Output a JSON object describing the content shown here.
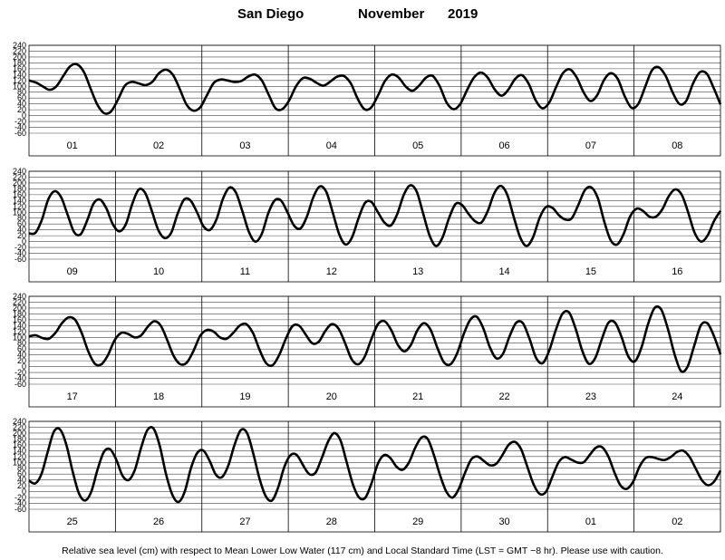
{
  "header": {
    "location": "San Diego",
    "month": "November",
    "year": "2019"
  },
  "footer": {
    "note": "Relative sea level (cm) with respect to Mean Lower Low Water (117 cm) and Local Standard Time (LST = GMT −8 hr). Please use with caution."
  },
  "chart_data": {
    "type": "line",
    "ylim": [
      -60,
      240
    ],
    "yticks": [
      -60,
      -40,
      -20,
      0,
      20,
      40,
      60,
      80,
      100,
      120,
      140,
      160,
      180,
      200,
      220,
      240
    ],
    "grid": true,
    "line_color": "#000000",
    "panels": [
      {
        "days": [
          "01",
          "02",
          "03",
          "04",
          "05",
          "06",
          "07",
          "08"
        ],
        "values": [
          120,
          113,
          100,
          88,
          100,
          135,
          168,
          175,
          150,
          92,
          37,
          8,
          15,
          55,
          102,
          115,
          110,
          104,
          115,
          145,
          157,
          140,
          92,
          38,
          17,
          28,
          70,
          112,
          123,
          120,
          115,
          118,
          133,
          140,
          120,
          72,
          25,
          22,
          52,
          100,
          128,
          126,
          112,
          102,
          116,
          133,
          135,
          110,
          58,
          22,
          28,
          70,
          118,
          140,
          130,
          100,
          85,
          103,
          130,
          135,
          100,
          45,
          22,
          40,
          88,
          130,
          147,
          130,
          90,
          68,
          88,
          125,
          138,
          108,
          53,
          25,
          45,
          98,
          145,
          158,
          130,
          80,
          50,
          70,
          122,
          145,
          125,
          67,
          27,
          40,
          98,
          155,
          165,
          135,
          80,
          40,
          50,
          110,
          148,
          143,
          95,
          38
        ]
      },
      {
        "days": [
          "09",
          "10",
          "11",
          "12",
          "13",
          "14",
          "15",
          "16"
        ],
        "values": [
          28,
          30,
          75,
          145,
          172,
          150,
          90,
          32,
          25,
          72,
          130,
          143,
          112,
          58,
          35,
          60,
          130,
          178,
          165,
          105,
          40,
          12,
          30,
          95,
          143,
          140,
          100,
          52,
          40,
          75,
          145,
          184,
          168,
          105,
          35,
          0,
          25,
          95,
          140,
          140,
          100,
          55,
          45,
          85,
          152,
          188,
          170,
          100,
          25,
          -10,
          15,
          80,
          132,
          135,
          100,
          65,
          55,
          95,
          160,
          192,
          170,
          95,
          20,
          -15,
          15,
          80,
          128,
          125,
          95,
          70,
          65,
          105,
          165,
          190,
          160,
          85,
          15,
          -15,
          15,
          80,
          118,
          115,
          90,
          75,
          80,
          125,
          175,
          185,
          150,
          70,
          5,
          -10,
          25,
          85,
          112,
          105,
          85,
          85,
          110,
          155,
          178,
          160,
          100,
          30,
          0,
          20,
          70,
          105
        ]
      },
      {
        "days": [
          "17",
          "18",
          "19",
          "20",
          "21",
          "22",
          "23",
          "24"
        ],
        "values": [
          103,
          107,
          98,
          95,
          115,
          148,
          168,
          160,
          115,
          52,
          10,
          8,
          40,
          90,
          115,
          112,
          100,
          106,
          135,
          155,
          140,
          90,
          35,
          8,
          15,
          55,
          105,
          125,
          120,
          100,
          95,
          115,
          140,
          145,
          115,
          58,
          12,
          5,
          40,
          95,
          138,
          140,
          110,
          80,
          85,
          122,
          145,
          130,
          80,
          25,
          8,
          35,
          95,
          145,
          155,
          125,
          75,
          52,
          75,
          125,
          148,
          125,
          65,
          15,
          8,
          45,
          110,
          160,
          170,
          130,
          65,
          28,
          45,
          105,
          150,
          148,
          95,
          30,
          12,
          55,
          125,
          180,
          185,
          130,
          55,
          10,
          30,
          95,
          150,
          150,
          100,
          35,
          18,
          65,
          145,
          200,
          195,
          130,
          45,
          -15,
          0,
          70,
          140,
          148,
          105,
          42
        ]
      },
      {
        "days": [
          "25",
          "26",
          "27",
          "28",
          "29",
          "30",
          "01",
          "02"
        ],
        "values": [
          38,
          28,
          60,
          135,
          205,
          212,
          160,
          70,
          -5,
          -30,
          0,
          75,
          135,
          145,
          110,
          55,
          40,
          75,
          150,
          210,
          215,
          155,
          60,
          -10,
          -35,
          0,
          80,
          132,
          140,
          105,
          58,
          50,
          90,
          160,
          210,
          200,
          130,
          45,
          -15,
          -30,
          15,
          85,
          125,
          125,
          90,
          60,
          65,
          115,
          170,
          200,
          175,
          100,
          25,
          -20,
          -20,
          30,
          95,
          125,
          115,
          85,
          75,
          100,
          150,
          185,
          180,
          125,
          55,
          0,
          -20,
          10,
          65,
          110,
          120,
          105,
          90,
          95,
          125,
          160,
          170,
          145,
          85,
          25,
          -8,
          0,
          50,
          100,
          118,
          110,
          100,
          100,
          125,
          150,
          152,
          120,
          65,
          20,
          10,
          35,
          85,
          115,
          118,
          112,
          108,
          118,
          135,
          140,
          120,
          80,
          40,
          22,
          35,
          72
        ]
      }
    ]
  }
}
